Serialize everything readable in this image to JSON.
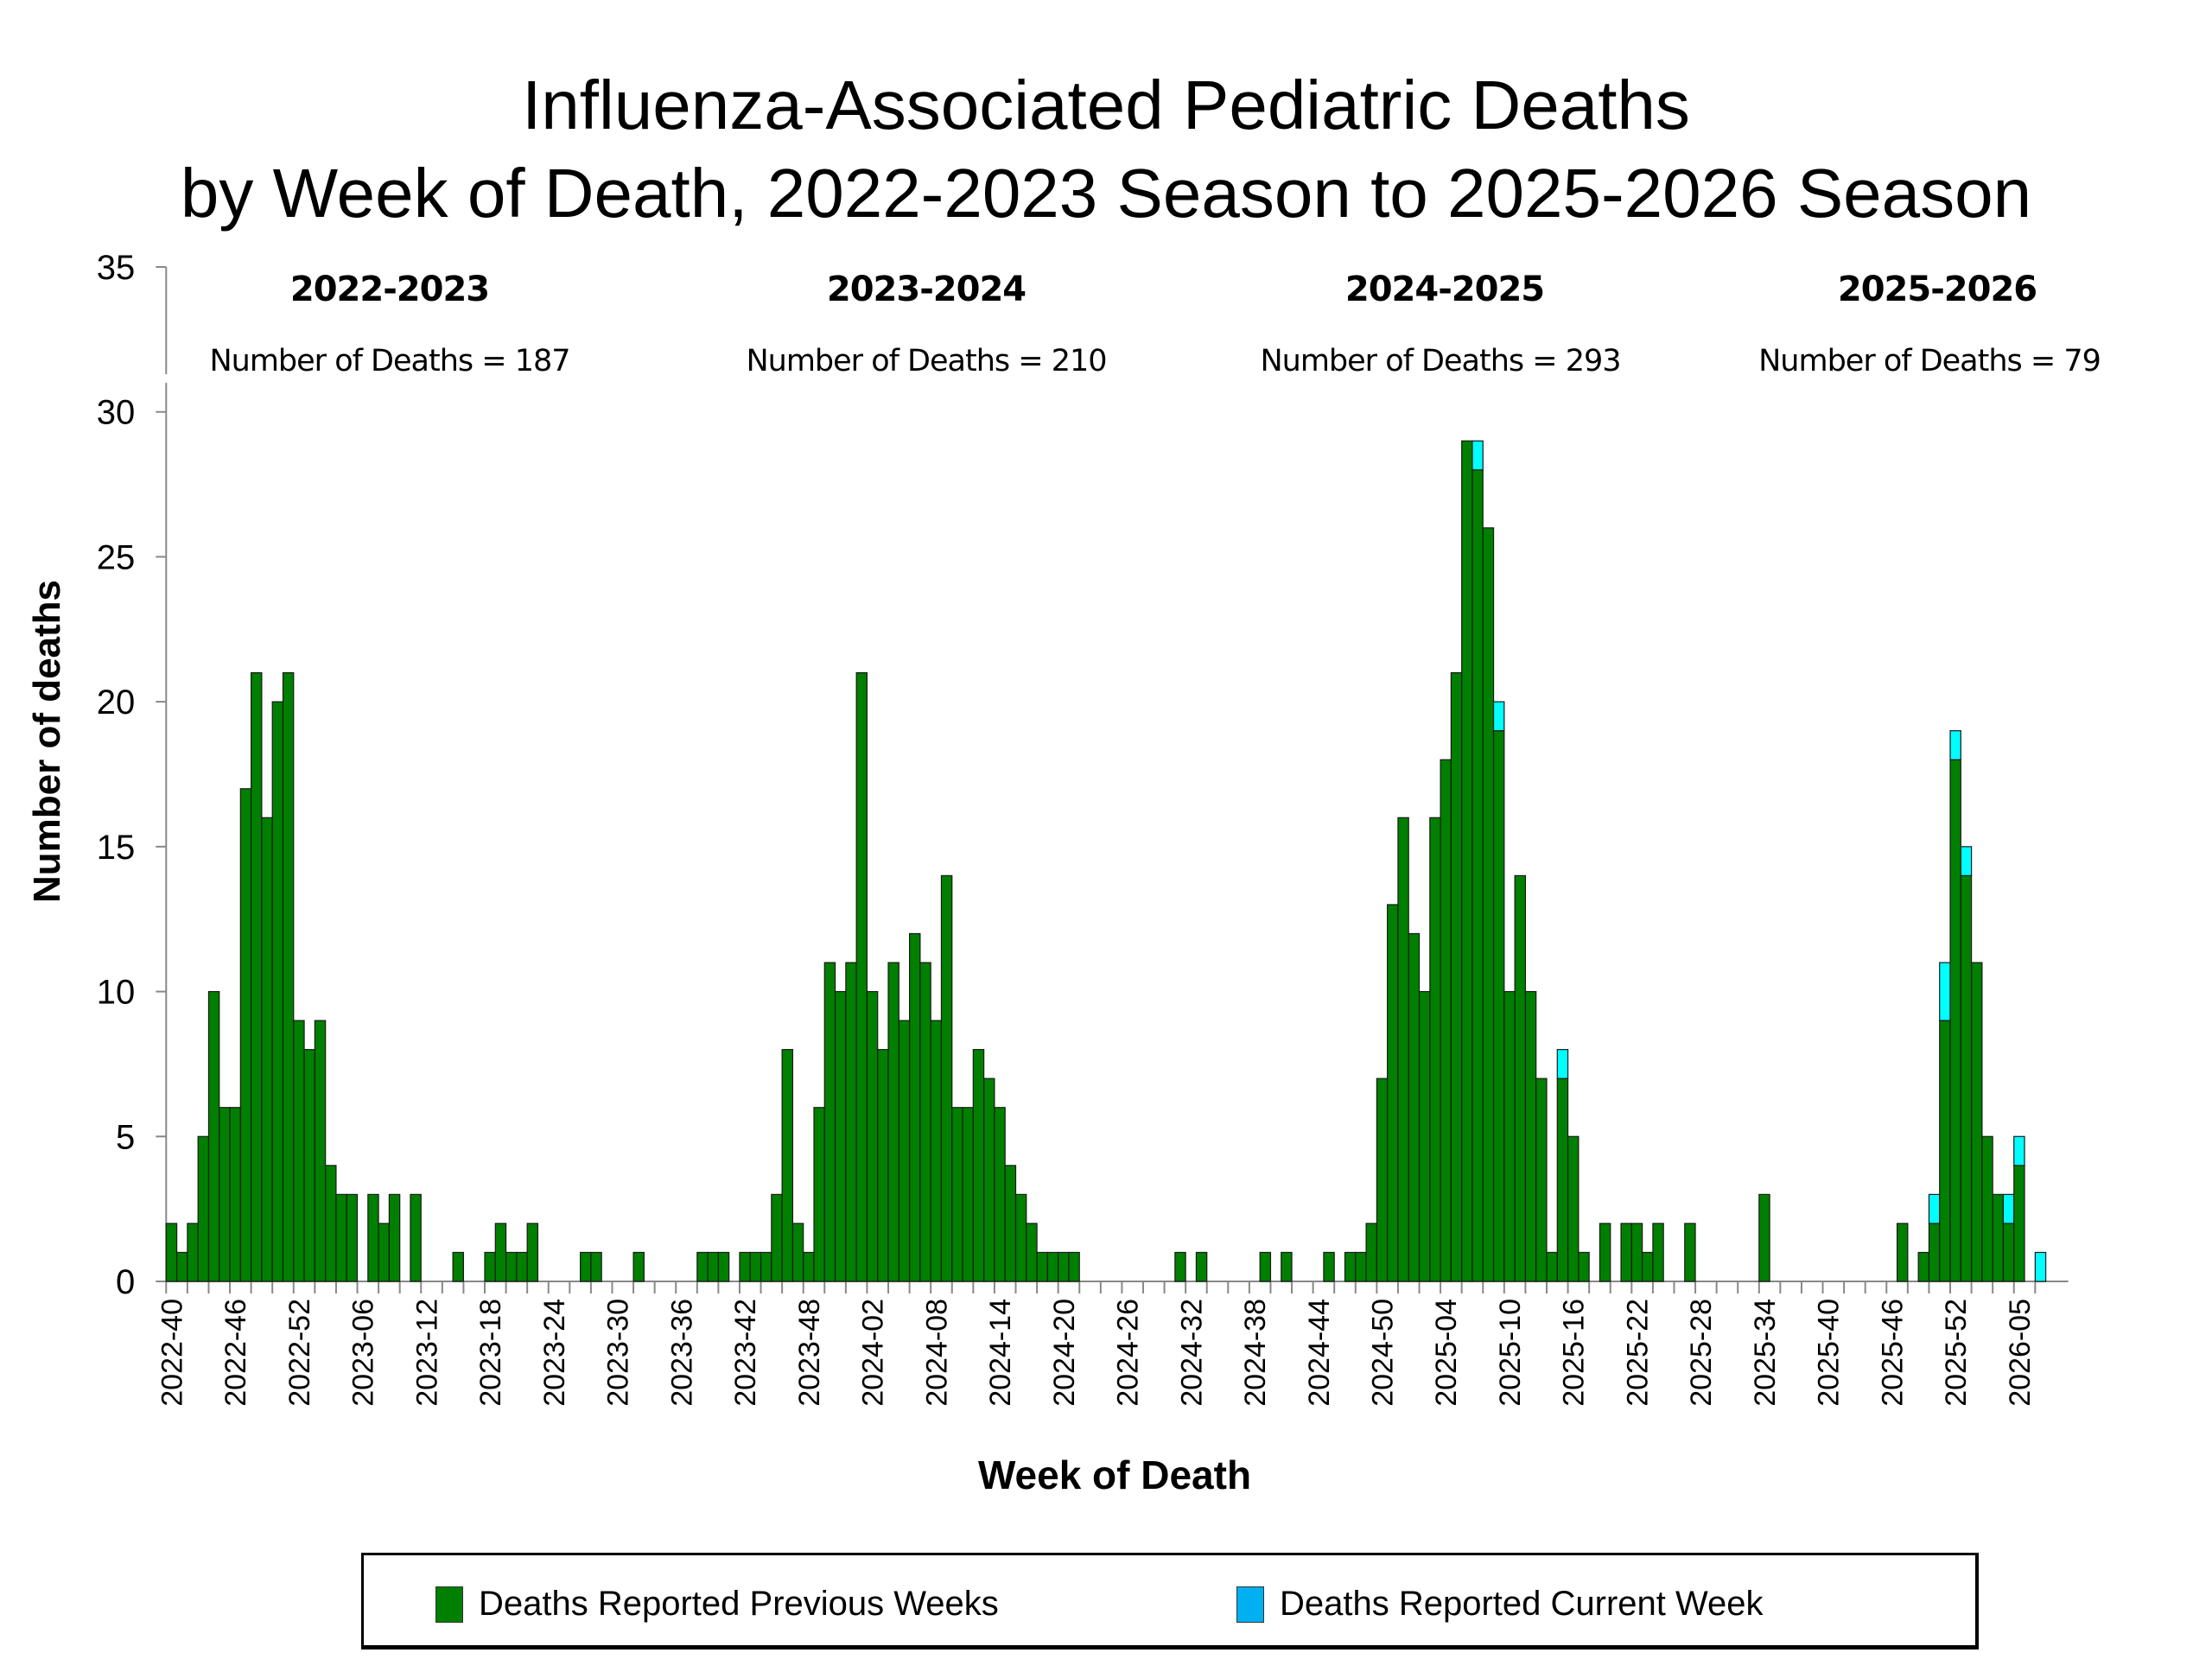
{
  "chart_data": {
    "type": "bar",
    "stacked": true,
    "title": [
      "Influenza-Associated Pediatric Deaths",
      "by Week of Death, 2022-2023 Season to 2025-2026 Season"
    ],
    "xlabel": "Week of Death",
    "ylabel": "Number of deaths",
    "ylim": [
      0,
      35
    ],
    "yticks": [
      0,
      5,
      10,
      15,
      20,
      25,
      30,
      35
    ],
    "first_week": "2022-40",
    "last_week": "2026-07",
    "x_tick_labels": [
      "2022-40",
      "2022-46",
      "2022-52",
      "2023-06",
      "2023-12",
      "2023-18",
      "2023-24",
      "2023-30",
      "2023-36",
      "2023-42",
      "2023-48",
      "2024-02",
      "2024-08",
      "2024-14",
      "2024-20",
      "2024-26",
      "2024-32",
      "2024-38",
      "2024-44",
      "2024-50",
      "2025-04",
      "2025-10",
      "2025-16",
      "2025-22",
      "2025-28",
      "2025-34",
      "2025-40",
      "2025-46",
      "2025-52",
      "2026-05"
    ],
    "x_tick_label_every": 6,
    "series": [
      {
        "name": "Deaths Reported Previous Weeks",
        "color": "#007F00",
        "values": [
          2,
          1,
          2,
          5,
          10,
          6,
          6,
          17,
          21,
          16,
          20,
          21,
          9,
          8,
          9,
          4,
          3,
          3,
          0,
          3,
          2,
          3,
          0,
          3,
          0,
          0,
          0,
          1,
          0,
          0,
          1,
          2,
          1,
          1,
          2,
          0,
          0,
          0,
          0,
          1,
          1,
          0,
          0,
          0,
          1,
          0,
          0,
          0,
          0,
          0,
          1,
          1,
          1,
          0,
          1,
          1,
          1,
          3,
          8,
          2,
          1,
          6,
          11,
          10,
          11,
          21,
          10,
          8,
          11,
          9,
          12,
          11,
          9,
          14,
          6,
          6,
          8,
          7,
          6,
          4,
          3,
          2,
          1,
          1,
          1,
          1,
          0,
          0,
          0,
          0,
          0,
          0,
          0,
          0,
          0,
          1,
          0,
          1,
          0,
          0,
          0,
          0,
          0,
          1,
          0,
          1,
          0,
          0,
          0,
          1,
          0,
          1,
          1,
          2,
          7,
          13,
          16,
          12,
          10,
          16,
          18,
          21,
          29,
          28,
          26,
          19,
          10,
          14,
          10,
          7,
          1,
          7,
          5,
          1,
          0,
          2,
          0,
          2,
          2,
          1,
          2,
          0,
          0,
          2,
          0,
          0,
          0,
          0,
          0,
          0,
          3,
          0,
          0,
          0,
          0,
          0,
          0,
          0,
          0,
          0,
          0,
          0,
          0,
          2,
          0,
          1,
          2,
          9,
          18,
          14,
          11,
          5,
          3,
          2,
          4,
          0,
          0
        ]
      },
      {
        "name": "Deaths Reported Current Week",
        "color": "#00FFFF",
        "legend_color": "#00B0F0",
        "values": [
          0,
          0,
          0,
          0,
          0,
          0,
          0,
          0,
          0,
          0,
          0,
          0,
          0,
          0,
          0,
          0,
          0,
          0,
          0,
          0,
          0,
          0,
          0,
          0,
          0,
          0,
          0,
          0,
          0,
          0,
          0,
          0,
          0,
          0,
          0,
          0,
          0,
          0,
          0,
          0,
          0,
          0,
          0,
          0,
          0,
          0,
          0,
          0,
          0,
          0,
          0,
          0,
          0,
          0,
          0,
          0,
          0,
          0,
          0,
          0,
          0,
          0,
          0,
          0,
          0,
          0,
          0,
          0,
          0,
          0,
          0,
          0,
          0,
          0,
          0,
          0,
          0,
          0,
          0,
          0,
          0,
          0,
          0,
          0,
          0,
          0,
          0,
          0,
          0,
          0,
          0,
          0,
          0,
          0,
          0,
          0,
          0,
          0,
          0,
          0,
          0,
          0,
          0,
          0,
          0,
          0,
          0,
          0,
          0,
          0,
          0,
          0,
          0,
          0,
          0,
          0,
          0,
          0,
          0,
          0,
          0,
          0,
          0,
          1,
          0,
          1,
          0,
          0,
          0,
          0,
          0,
          1,
          0,
          0,
          0,
          0,
          0,
          0,
          0,
          0,
          0,
          0,
          0,
          0,
          0,
          0,
          0,
          0,
          0,
          0,
          0,
          0,
          0,
          0,
          0,
          0,
          0,
          0,
          0,
          0,
          0,
          0,
          0,
          0,
          0,
          0,
          1,
          2,
          1,
          1,
          0,
          0,
          0,
          1,
          1,
          0,
          1
        ]
      }
    ],
    "seasons": [
      {
        "label": "2022-2023",
        "count_text": "Number of Deaths = 187",
        "total": 187
      },
      {
        "label": "2023-2024",
        "count_text": "Number of Deaths = 210",
        "total": 210
      },
      {
        "label": "2024-2025",
        "count_text": "Number of Deaths = 293",
        "total": 293
      },
      {
        "label": "2025-2026",
        "count_text": "Number of Deaths = 79",
        "total": 79
      }
    ],
    "legend": {
      "placement": "bottom",
      "items": [
        "Deaths Reported Previous Weeks",
        "Deaths Reported Current Week"
      ]
    },
    "grid": false
  }
}
